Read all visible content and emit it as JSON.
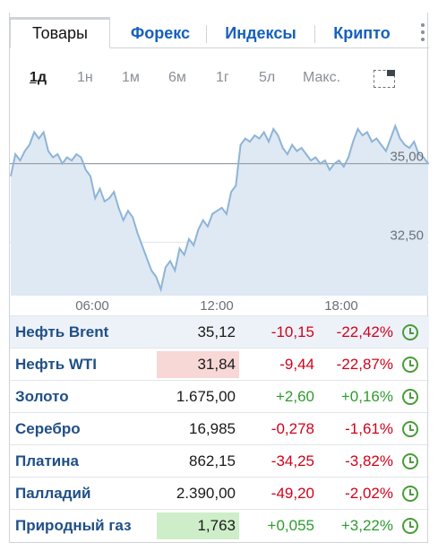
{
  "tabs": [
    {
      "label": "Товары",
      "active": true
    },
    {
      "label": "Форекс",
      "active": false
    },
    {
      "label": "Индексы",
      "active": false
    },
    {
      "label": "Крипто",
      "active": false
    }
  ],
  "menu_icon": "more-vertical-icon",
  "ranges": [
    {
      "label": "1д",
      "active": true
    },
    {
      "label": "1н",
      "active": false
    },
    {
      "label": "1м",
      "active": false
    },
    {
      "label": "6м",
      "active": false
    },
    {
      "label": "1г",
      "active": false
    },
    {
      "label": "5л",
      "active": false
    },
    {
      "label": "Макс.",
      "active": false
    }
  ],
  "fullscreen_icon": "fullscreen-icon",
  "chart_data": {
    "type": "area",
    "title": "",
    "xlabel": "",
    "ylabel": "",
    "x_ticks": [
      "06:00",
      "12:00",
      "18:00"
    ],
    "y_ticks": [
      "32,50",
      "35,00"
    ],
    "ylim": [
      30.8,
      36.5
    ],
    "reference_value": 35.0,
    "grid": true,
    "colors": {
      "line": "#8eb4d8",
      "fill": "#dfe9f3",
      "reference": "#9aa2aa"
    },
    "series": [
      {
        "values": [
          34.6,
          35.3,
          35.1,
          35.4,
          35.6,
          36.0,
          35.8,
          36.0,
          35.4,
          35.2,
          35.3,
          35.0,
          35.2,
          35.1,
          35.3,
          35.2,
          34.8,
          34.6,
          33.9,
          34.2,
          33.8,
          33.9,
          34.1,
          33.6,
          33.2,
          33.5,
          33.3,
          32.8,
          32.4,
          32.0,
          31.6,
          31.4,
          31.0,
          31.7,
          31.9,
          31.6,
          32.3,
          32.1,
          32.6,
          32.4,
          32.9,
          33.2,
          33.0,
          33.4,
          33.5,
          33.6,
          33.4,
          34.1,
          34.3,
          35.6,
          35.8,
          35.7,
          35.9,
          35.8,
          36.0,
          35.7,
          36.1,
          35.9,
          35.5,
          35.3,
          35.6,
          35.4,
          35.5,
          35.3,
          35.1,
          35.2,
          35.0,
          35.1,
          34.8,
          35.0,
          35.1,
          34.9,
          35.2,
          35.7,
          36.1,
          35.9,
          36.0,
          35.7,
          35.8,
          35.6,
          35.4,
          35.8,
          36.2,
          35.8,
          35.6,
          35.5,
          35.7,
          35.3,
          35.2,
          35.0
        ]
      }
    ]
  },
  "rows": [
    {
      "name": "Нефть Brent",
      "price": "35,12",
      "change": "-10,15",
      "pct": "-22,42%",
      "dir": "neg",
      "price_flash": "none",
      "highlight": true
    },
    {
      "name": "Нефть WTI",
      "price": "31,84",
      "change": "-9,44",
      "pct": "-22,87%",
      "dir": "neg",
      "price_flash": "down",
      "highlight": false
    },
    {
      "name": "Золото",
      "price": "1.675,00",
      "change": "+2,60",
      "pct": "+0,16%",
      "dir": "pos",
      "price_flash": "none",
      "highlight": false
    },
    {
      "name": "Серебро",
      "price": "16,985",
      "change": "-0,278",
      "pct": "-1,61%",
      "dir": "neg",
      "price_flash": "none",
      "highlight": false
    },
    {
      "name": "Платина",
      "price": "862,15",
      "change": "-34,25",
      "pct": "-3,82%",
      "dir": "neg",
      "price_flash": "none",
      "highlight": false
    },
    {
      "name": "Палладий",
      "price": "2.390,00",
      "change": "-49,20",
      "pct": "-2,02%",
      "dir": "neg",
      "price_flash": "none",
      "highlight": false
    },
    {
      "name": "Природный газ",
      "price": "1,763",
      "change": "+0,055",
      "pct": "+3,22%",
      "dir": "pos",
      "price_flash": "up",
      "highlight": false
    }
  ],
  "row_icon": "clock-icon"
}
